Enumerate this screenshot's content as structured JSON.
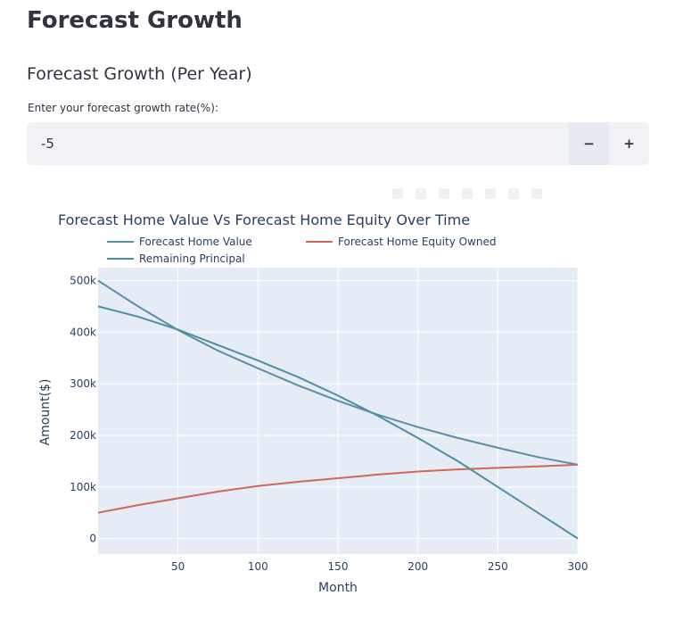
{
  "page": {
    "title": "Forecast Growth",
    "section_title": "Forecast Growth (Per Year)"
  },
  "growth_input": {
    "label": "Enter your forecast growth rate(%):",
    "value": "-5",
    "decrement_label": "−",
    "increment_label": "+"
  },
  "colors": {
    "home_value": "#5b8fa3",
    "equity": "#d0685a",
    "principal": "#4d8fa0",
    "plot_bg": "#e5ecf6",
    "grid": "#ffffff"
  },
  "chart_data": {
    "type": "line",
    "title": "Forecast Home Value Vs Forecast Home Equity Over Time",
    "xlabel": "Month",
    "ylabel": "Amount($)",
    "xlim": [
      0,
      300
    ],
    "ylim": [
      -30000,
      525000
    ],
    "xticks": [
      50,
      100,
      150,
      200,
      250,
      300
    ],
    "yticks": [
      0,
      100000,
      200000,
      300000,
      400000,
      500000
    ],
    "ytick_labels": [
      "0",
      "100k",
      "200k",
      "300k",
      "400k",
      "500k"
    ],
    "legend_position": "top",
    "grid": true,
    "series": [
      {
        "name": "Forecast Home Value",
        "x": [
          0,
          25,
          50,
          75,
          100,
          125,
          150,
          175,
          200,
          225,
          250,
          275,
          300
        ],
        "y": [
          500000,
          450000,
          404000,
          364000,
          330000,
          297000,
          267000,
          240000,
          216000,
          195000,
          176000,
          158000,
          143000
        ]
      },
      {
        "name": "Forecast Home Equity Owned",
        "x": [
          0,
          25,
          50,
          75,
          100,
          125,
          150,
          175,
          200,
          225,
          250,
          275,
          300
        ],
        "y": [
          50000,
          65000,
          78000,
          91000,
          102000,
          110000,
          117000,
          124000,
          130000,
          134000,
          137000,
          140000,
          143000
        ]
      },
      {
        "name": "Remaining Principal",
        "x": [
          0,
          25,
          50,
          75,
          100,
          125,
          150,
          175,
          200,
          225,
          250,
          275,
          300
        ],
        "y": [
          450000,
          430000,
          405000,
          375000,
          345000,
          313000,
          277000,
          238000,
          195000,
          150000,
          100000,
          50000,
          0
        ]
      }
    ]
  }
}
